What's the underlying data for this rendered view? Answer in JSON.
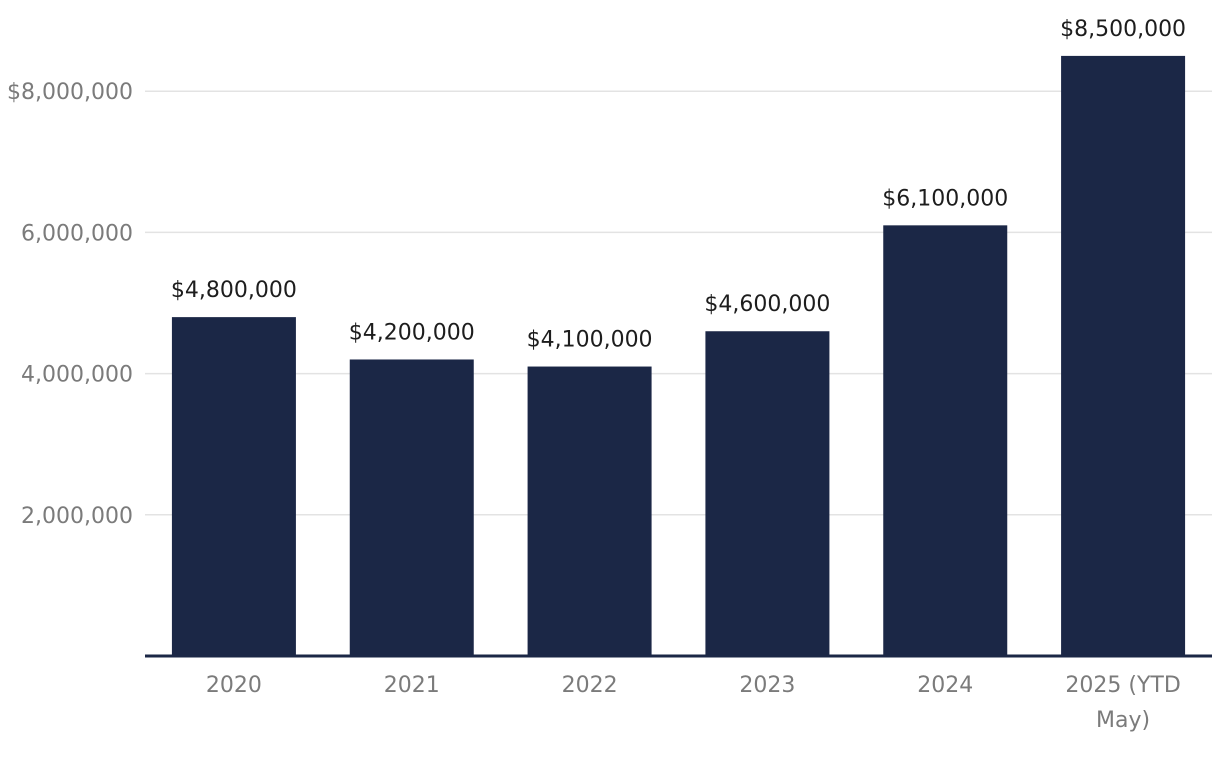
{
  "chart_data": {
    "type": "bar",
    "categories": [
      "2020",
      "2021",
      "2022",
      "2023",
      "2024",
      "2025 (YTD May)"
    ],
    "category_lines": [
      [
        "2020"
      ],
      [
        "2021"
      ],
      [
        "2022"
      ],
      [
        "2023"
      ],
      [
        "2024"
      ],
      [
        "2025 (YTD",
        "May)"
      ]
    ],
    "values": [
      4800000,
      4200000,
      4100000,
      4600000,
      6100000,
      8500000
    ],
    "data_labels": [
      "$4,800,000",
      "$4,200,000",
      "$4,100,000",
      "$4,600,000",
      "$6,100,000",
      "$8,500,000"
    ],
    "ylim": [
      0,
      9000000
    ],
    "yticks": [
      2000000,
      4000000,
      6000000,
      8000000
    ],
    "ytick_labels": [
      "2,000,000",
      "4,000,000",
      "6,000,000",
      "$8,000,000"
    ],
    "grid": true,
    "colors": {
      "bar": "#1b2746",
      "grid": "#e3e3e3",
      "baseline": "#1b2746"
    }
  }
}
